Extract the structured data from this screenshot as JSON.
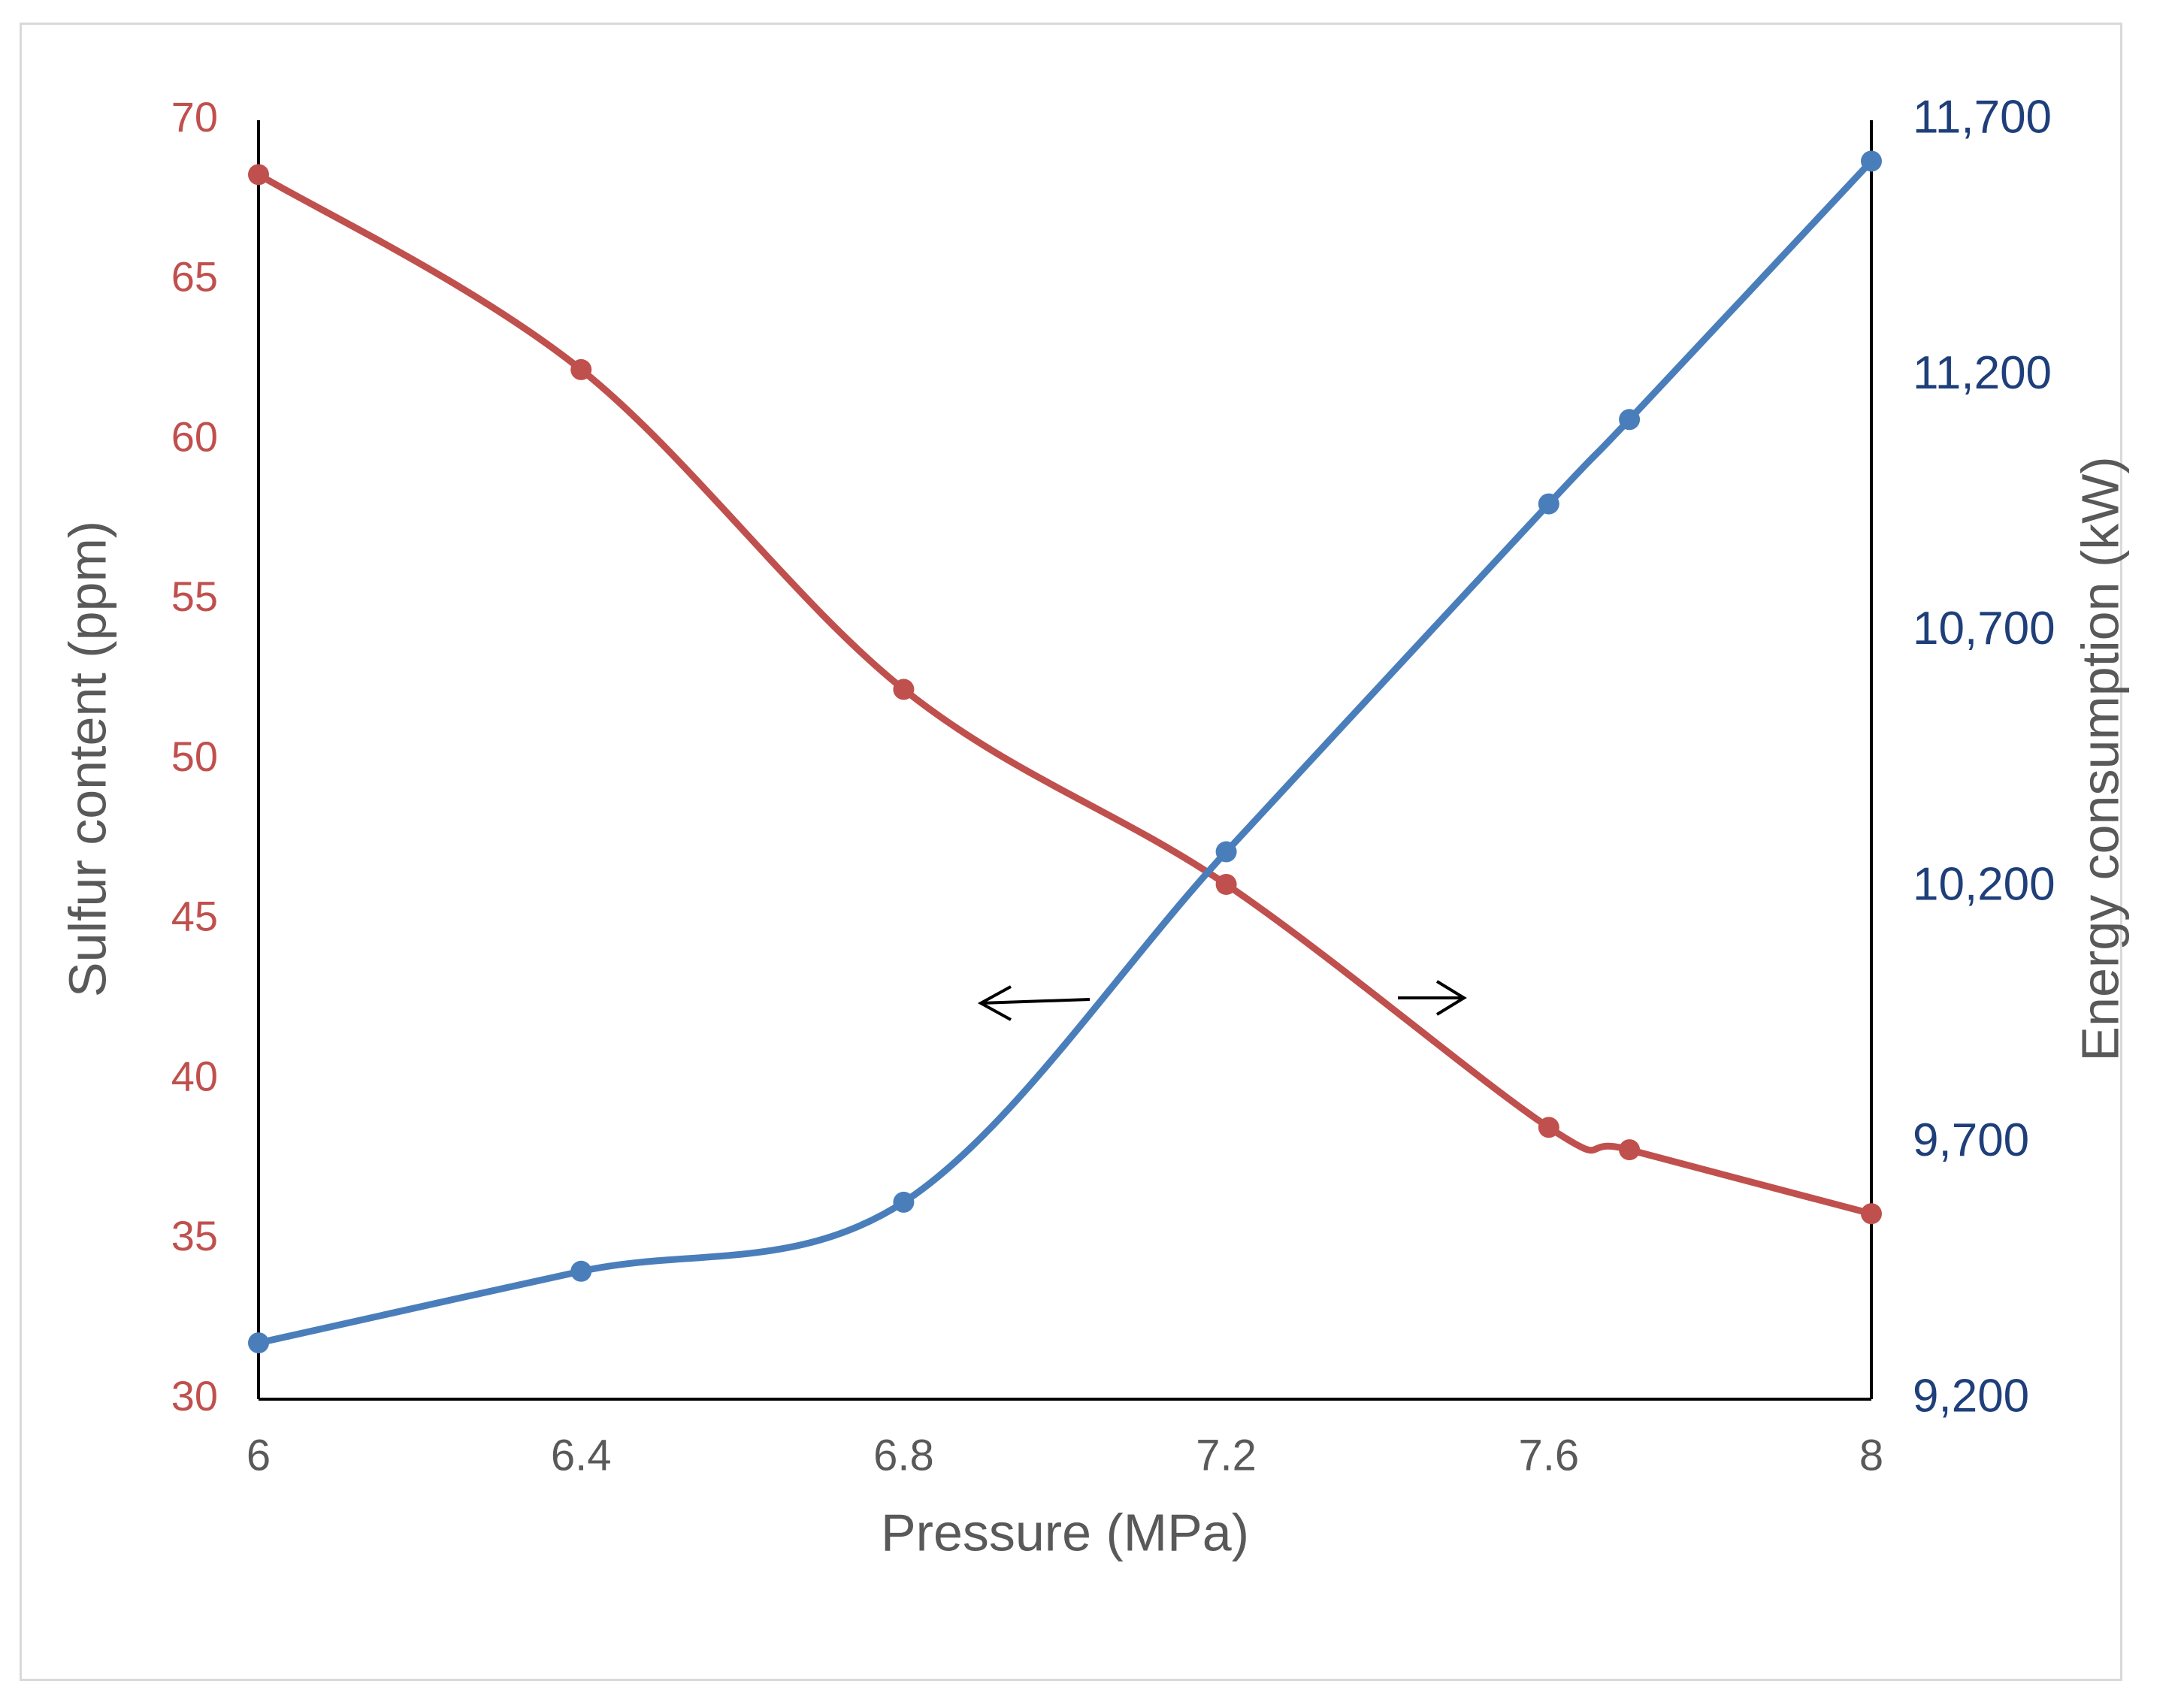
{
  "chart_data": {
    "type": "line",
    "title": "",
    "xlabel": "Pressure (MPa)",
    "ylabel": "Sulfur content (ppm)",
    "y2label": "Energy consumption (kW)",
    "xlim": [
      6,
      8
    ],
    "ylim": [
      30,
      70
    ],
    "y2lim": [
      9200,
      11700
    ],
    "x_ticks": [
      "6",
      "6.4",
      "6.8",
      "7.2",
      "7.6",
      "8"
    ],
    "x_tick_values": [
      6,
      6.4,
      6.8,
      7.2,
      7.6,
      8
    ],
    "y_ticks": [
      "30",
      "35",
      "40",
      "45",
      "50",
      "55",
      "60",
      "65",
      "70"
    ],
    "y_tick_values": [
      30,
      35,
      40,
      45,
      50,
      55,
      60,
      65,
      70
    ],
    "y2_ticks": [
      "9,200",
      "9,700",
      "10,200",
      "10,700",
      "11,200",
      "11,700"
    ],
    "y2_tick_values": [
      9200,
      9700,
      10200,
      10700,
      11200,
      11700
    ],
    "grid": false,
    "series": [
      {
        "name": "Sulfur content",
        "axis": "left",
        "color": "#c0504d",
        "x": [
          6,
          6.4,
          6.8,
          7.2,
          7.6,
          7.7,
          8
        ],
        "values": [
          68.3,
          62.2,
          52.2,
          46.1,
          38.5,
          37.8,
          35.8
        ]
      },
      {
        "name": "Energy consumption",
        "axis": "right",
        "color": "#4a7ebb",
        "x": [
          6,
          6.4,
          6.8,
          7.2,
          7.6,
          7.7,
          8
        ],
        "values": [
          9310,
          9450,
          9585,
          10270,
          10950,
          11115,
          11620
        ]
      }
    ],
    "annotations": [
      {
        "name": "left-axis-arrow",
        "direction": "left",
        "series": "Sulfur content"
      },
      {
        "name": "right-axis-arrow",
        "direction": "right",
        "series": "Energy consumption"
      }
    ],
    "colors": {
      "left_axis_text": "#c0504d",
      "right_axis_text": "#1f3f7a",
      "x_axis_text": "#595959",
      "axis_line": "#000000"
    }
  }
}
